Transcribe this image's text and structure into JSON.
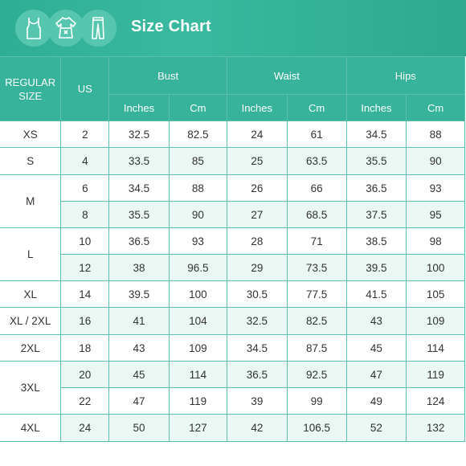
{
  "header": {
    "title": "Size Chart",
    "icons": [
      "tank-top-icon",
      "dress-icon",
      "pants-icon"
    ]
  },
  "table": {
    "col_regular_size": "REGULAR SIZE",
    "col_us": "US",
    "groups": [
      "Bust",
      "Waist",
      "Hips"
    ],
    "sub": {
      "inches": "Inches",
      "cm": "Cm"
    },
    "rows": [
      {
        "size": "XS",
        "us": "2",
        "bust_in": "32.5",
        "bust_cm": "82.5",
        "waist_in": "24",
        "waist_cm": "61",
        "hips_in": "34.5",
        "hips_cm": "88"
      },
      {
        "size": "S",
        "us": "4",
        "bust_in": "33.5",
        "bust_cm": "85",
        "waist_in": "25",
        "waist_cm": "63.5",
        "hips_in": "35.5",
        "hips_cm": "90"
      },
      {
        "size": "M",
        "us": "6",
        "bust_in": "34.5",
        "bust_cm": "88",
        "waist_in": "26",
        "waist_cm": "66",
        "hips_in": "36.5",
        "hips_cm": "93"
      },
      {
        "size": "",
        "us": "8",
        "bust_in": "35.5",
        "bust_cm": "90",
        "waist_in": "27",
        "waist_cm": "68.5",
        "hips_in": "37.5",
        "hips_cm": "95"
      },
      {
        "size": "L",
        "us": "10",
        "bust_in": "36.5",
        "bust_cm": "93",
        "waist_in": "28",
        "waist_cm": "71",
        "hips_in": "38.5",
        "hips_cm": "98"
      },
      {
        "size": "",
        "us": "12",
        "bust_in": "38",
        "bust_cm": "96.5",
        "waist_in": "29",
        "waist_cm": "73.5",
        "hips_in": "39.5",
        "hips_cm": "100"
      },
      {
        "size": "XL",
        "us": "14",
        "bust_in": "39.5",
        "bust_cm": "100",
        "waist_in": "30.5",
        "waist_cm": "77.5",
        "hips_in": "41.5",
        "hips_cm": "105"
      },
      {
        "size": "XL / 2XL",
        "us": "16",
        "bust_in": "41",
        "bust_cm": "104",
        "waist_in": "32.5",
        "waist_cm": "82.5",
        "hips_in": "43",
        "hips_cm": "109"
      },
      {
        "size": "2XL",
        "us": "18",
        "bust_in": "43",
        "bust_cm": "109",
        "waist_in": "34.5",
        "waist_cm": "87.5",
        "hips_in": "45",
        "hips_cm": "114"
      },
      {
        "size": "3XL",
        "us": "20",
        "bust_in": "45",
        "bust_cm": "114",
        "waist_in": "36.5",
        "waist_cm": "92.5",
        "hips_in": "47",
        "hips_cm": "119"
      },
      {
        "size": "",
        "us": "22",
        "bust_in": "47",
        "bust_cm": "119",
        "waist_in": "39",
        "waist_cm": "99",
        "hips_in": "49",
        "hips_cm": "124"
      },
      {
        "size": "4XL",
        "us": "24",
        "bust_in": "50",
        "bust_cm": "127",
        "waist_in": "42",
        "waist_cm": "106.5",
        "hips_in": "52",
        "hips_cm": "132"
      }
    ]
  }
}
